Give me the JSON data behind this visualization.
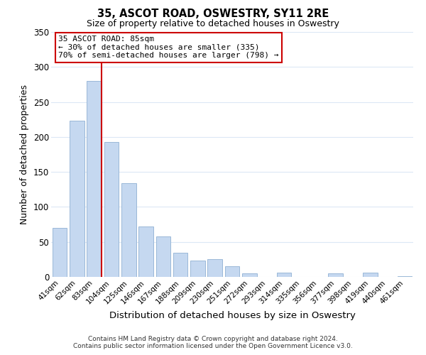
{
  "title": "35, ASCOT ROAD, OSWESTRY, SY11 2RE",
  "subtitle": "Size of property relative to detached houses in Oswestry",
  "xlabel": "Distribution of detached houses by size in Oswestry",
  "ylabel": "Number of detached properties",
  "categories": [
    "41sqm",
    "62sqm",
    "83sqm",
    "104sqm",
    "125sqm",
    "146sqm",
    "167sqm",
    "188sqm",
    "209sqm",
    "230sqm",
    "251sqm",
    "272sqm",
    "293sqm",
    "314sqm",
    "335sqm",
    "356sqm",
    "377sqm",
    "398sqm",
    "419sqm",
    "440sqm",
    "461sqm"
  ],
  "values": [
    70,
    223,
    280,
    193,
    134,
    72,
    58,
    34,
    23,
    25,
    15,
    5,
    0,
    6,
    0,
    0,
    5,
    0,
    6,
    0,
    1
  ],
  "bar_color": "#c5d8f0",
  "bar_edge_color": "#9ab8d8",
  "highlight_index": 2,
  "highlight_line_color": "#cc0000",
  "ylim": [
    0,
    350
  ],
  "yticks": [
    0,
    50,
    100,
    150,
    200,
    250,
    300,
    350
  ],
  "annotation_title": "35 ASCOT ROAD: 85sqm",
  "annotation_line1": "← 30% of detached houses are smaller (335)",
  "annotation_line2": "70% of semi-detached houses are larger (798) →",
  "annotation_box_color": "#ffffff",
  "annotation_box_edge": "#cc0000",
  "footer_line1": "Contains HM Land Registry data © Crown copyright and database right 2024.",
  "footer_line2": "Contains public sector information licensed under the Open Government Licence v3.0.",
  "background_color": "#ffffff",
  "grid_color": "#dce8f5"
}
